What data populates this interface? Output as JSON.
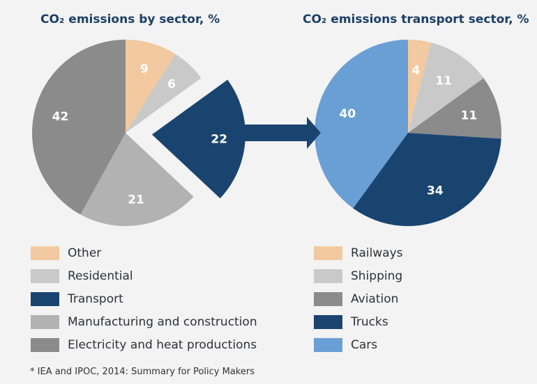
{
  "colors": {
    "other": "#f2c9a0",
    "residential": "#c9c9c9",
    "transport": "#1a4470",
    "manufacturing": "#b2b2b2",
    "electricity": "#8b8b8b",
    "railways": "#f2c9a0",
    "shipping": "#c9c9c9",
    "aviation": "#8b8b8b",
    "trucks": "#1a4470",
    "cars": "#6a9fd5",
    "arrow": "#1a4470",
    "title": "#1c3f66"
  },
  "chart_data": [
    {
      "type": "pie",
      "title": "CO₂ emissions by sector, %",
      "categories": [
        "Other",
        "Residential",
        "Transport",
        "Manufacturing and construction",
        "Electricity and heat productions"
      ],
      "values": [
        9,
        6,
        22,
        21,
        42
      ],
      "labels": [
        "9",
        "6",
        "22",
        "21",
        "42"
      ],
      "exploded": "Transport",
      "legend": "bottom"
    },
    {
      "type": "pie",
      "title": "CO₂ emissions transport sector, %",
      "categories": [
        "Railways",
        "Shipping",
        "Aviation",
        "Trucks",
        "Cars"
      ],
      "values": [
        4,
        11,
        11,
        34,
        40
      ],
      "labels": [
        "4",
        "11",
        "11",
        "34",
        "40"
      ],
      "legend": "bottom"
    }
  ],
  "footnote": "* IEA and IPOC, 2014: Summary for Policy Makers"
}
